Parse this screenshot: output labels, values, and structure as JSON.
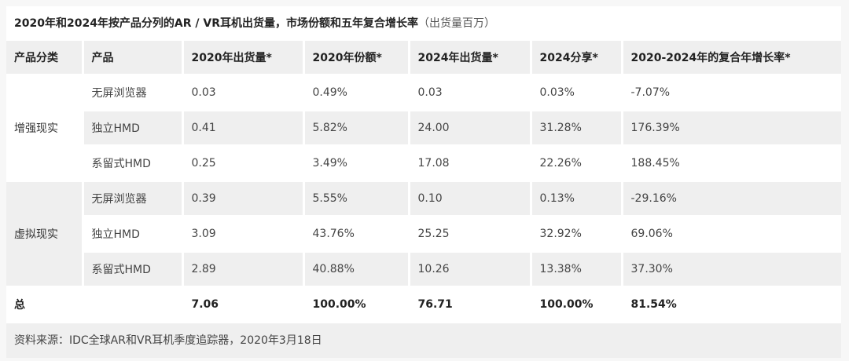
{
  "title": "2020年和2024年按产品分列的AR / VR耳机出货量，市场份额和五年复合增长率",
  "title_note": "（出货量百万）",
  "headers": [
    "产品分类",
    "产品",
    "2020年出货量*",
    "2020年份额*",
    "2024年出货量*",
    "2024分享*",
    "2020-2024年的复合年增长率*"
  ],
  "groups": [
    {
      "category": "增强现实",
      "rows": [
        [
          "无屏浏览器",
          "0.03",
          "0.49%",
          "0.03",
          "0.03%",
          "-7.07%"
        ],
        [
          "独立HMD",
          "0.41",
          "5.82%",
          "24.00",
          "31.28%",
          "176.39%"
        ],
        [
          "系留式HMD",
          "0.25",
          "3.49%",
          "17.08",
          "22.26%",
          "188.45%"
        ]
      ]
    },
    {
      "category": "虚拟现实",
      "rows": [
        [
          "无屏浏览器",
          "0.39",
          "5.55%",
          "0.10",
          "0.13%",
          "-29.16%"
        ],
        [
          "独立HMD",
          "3.09",
          "43.76%",
          "25.25",
          "32.92%",
          "69.06%"
        ],
        [
          "系留式HMD",
          "2.89",
          "40.88%",
          "10.26",
          "13.38%",
          "37.30%"
        ]
      ]
    }
  ],
  "total": [
    "总",
    "",
    "7.06",
    "100.00%",
    "76.71",
    "100.00%",
    "81.54%"
  ],
  "source": "资料来源：IDC全球AR和VR耳机季度追踪器，2020年3月18日"
}
